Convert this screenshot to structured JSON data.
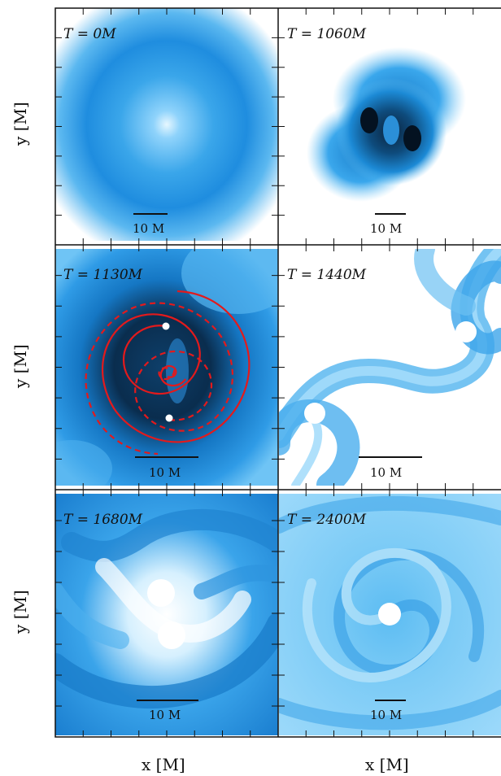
{
  "figure": {
    "panels": [
      {
        "id": "t0",
        "time_label": "T = 0M",
        "scale_label": "10 M"
      },
      {
        "id": "t1060",
        "time_label": "T = 1060M",
        "scale_label": "10 M"
      },
      {
        "id": "t1130",
        "time_label": "T = 1130M",
        "scale_label": "10 M"
      },
      {
        "id": "t1440",
        "time_label": "T = 1440M",
        "scale_label": "10 M"
      },
      {
        "id": "t1680",
        "time_label": "T = 1680M",
        "scale_label": "10 M"
      },
      {
        "id": "t2400",
        "time_label": "T = 2400M",
        "scale_label": "10 M"
      }
    ],
    "y_axis_label": "y [M]",
    "x_axis_label": "x [M]",
    "colors": {
      "gas_dense": "#0a2a44",
      "gas_mid": "#1a86d8",
      "gas_light": "#9cd8fb",
      "trajectory": "#e31a1c"
    }
  }
}
